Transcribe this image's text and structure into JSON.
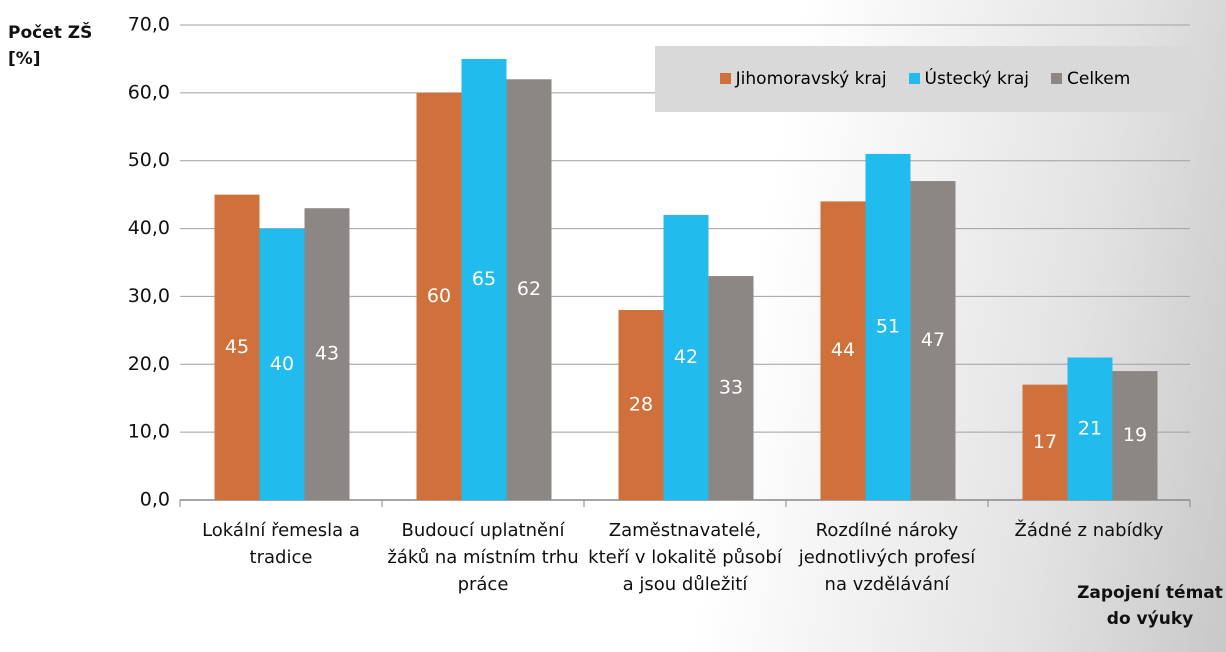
{
  "chart_data": {
    "type": "bar",
    "y_label": "Počet ZŠ [%]",
    "x_label": "Zapojení témat do výuky",
    "categories": [
      "Lokální řemesla a tradice",
      "Budoucí uplatnění žáků na místním trhu práce",
      "Zaměstnavatelé, kteří v lokalitě působí a jsou důležití",
      "Rozdílné nároky jednotlivých profesí na vzdělávání",
      "Žádné z nabídky"
    ],
    "series": [
      {
        "name": "Jihomoravský kraj",
        "color": "#d0703a",
        "values": [
          45,
          60,
          28,
          44,
          17
        ]
      },
      {
        "name": "Ústecký kraj",
        "color": "#22bbee",
        "values": [
          40,
          65,
          42,
          51,
          21
        ]
      },
      {
        "name": "Celkem",
        "color": "#8c8684",
        "values": [
          43,
          62,
          33,
          47,
          19
        ]
      }
    ],
    "ylim": [
      0,
      70
    ],
    "yticks": [
      {
        "value": 0,
        "label": "0,0"
      },
      {
        "value": 10,
        "label": "10,0"
      },
      {
        "value": 20,
        "label": "20,0"
      },
      {
        "value": 30,
        "label": "30,0"
      },
      {
        "value": 40,
        "label": "40,0"
      },
      {
        "value": 50,
        "label": "50,0"
      },
      {
        "value": 60,
        "label": "60,0"
      },
      {
        "value": 70,
        "label": "70,0"
      }
    ],
    "grid": true,
    "legend": "top-right"
  }
}
